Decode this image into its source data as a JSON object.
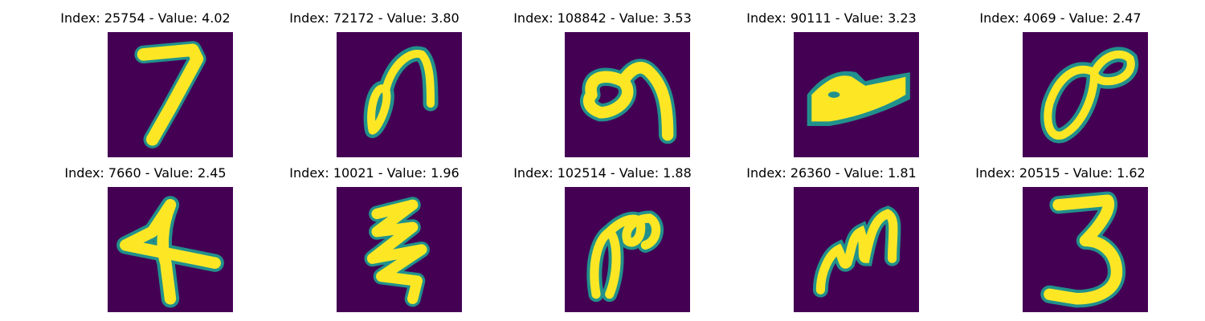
{
  "figure": {
    "colormap": "viridis",
    "background_color": "#440154",
    "stroke_color": "#fde725",
    "edge_color": "#21918c",
    "panels": [
      {
        "caption": "Index: 25754 - Value: 4.02",
        "digit": "7"
      },
      {
        "caption": "Index: 72172 - Value: 3.80",
        "digit": "loop-hook"
      },
      {
        "caption": "Index: 108842 - Value: 3.53",
        "digit": "a-shape"
      },
      {
        "caption": "Index: 90111 - Value: 3.23",
        "digit": "blob"
      },
      {
        "caption": "Index: 4069 - Value: 2.47",
        "digit": "8-tilted"
      },
      {
        "caption": "Index: 7660 - Value: 2.45",
        "digit": "4"
      },
      {
        "caption": "Index: 10021 - Value: 1.96",
        "digit": "zigzag"
      },
      {
        "caption": "Index: 102514 - Value: 1.88",
        "digit": "loop-open"
      },
      {
        "caption": "Index: 26360 - Value: 1.81",
        "digit": "m-scribble"
      },
      {
        "caption": "Index: 20515 - Value: 1.62",
        "digit": "3"
      }
    ]
  }
}
